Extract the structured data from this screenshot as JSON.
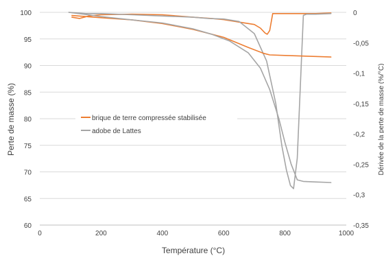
{
  "chart_data": {
    "type": "line",
    "xlabel": "Température (°C)",
    "ylabel": "Perte de masse (%)",
    "y2label": "Dérivée de la perte de masse (%/°C)",
    "xlim": [
      0,
      1000
    ],
    "ylim": [
      60,
      100
    ],
    "y2lim": [
      -0.35,
      0
    ],
    "xticks": [
      "0",
      "200",
      "400",
      "600",
      "800",
      "1000"
    ],
    "yticks": [
      "60",
      "65",
      "70",
      "75",
      "80",
      "85",
      "90",
      "95",
      "100"
    ],
    "y2ticks": [
      "-0,35",
      "-0,3",
      "-0,25",
      "-0,2",
      "-0,15",
      "-0,1",
      "-0,05",
      "0"
    ],
    "grid": "horizontal",
    "legend_position": "center-left",
    "legend": [
      "brique de terre compressée stabilisée",
      "adobe de Lattes"
    ],
    "series": [
      {
        "name": "brique de terre compressée stabilisée",
        "color": "#ED7D31",
        "axis": "left",
        "kind": "mass",
        "x": [
          105,
          200,
          300,
          400,
          500,
          600,
          680,
          730,
          750,
          800,
          900,
          950
        ],
        "y": [
          99.4,
          99.0,
          98.6,
          97.9,
          96.8,
          95.3,
          93.4,
          92.3,
          92.0,
          91.9,
          91.7,
          91.6
        ]
      },
      {
        "name": "brique de terre compressée stabilisée",
        "color": "#ED7D31",
        "axis": "right",
        "kind": "derivative",
        "x": [
          105,
          130,
          160,
          200,
          300,
          400,
          450,
          500,
          560,
          600,
          650,
          700,
          720,
          735,
          742,
          750,
          760,
          800,
          900,
          950
        ],
        "y": [
          -0.008,
          -0.01,
          -0.006,
          -0.004,
          -0.003,
          -0.004,
          -0.006,
          -0.008,
          -0.01,
          -0.012,
          -0.016,
          -0.02,
          -0.026,
          -0.034,
          -0.036,
          -0.03,
          -0.002,
          -0.002,
          -0.002,
          -0.001
        ]
      },
      {
        "name": "adobe de Lattes",
        "color": "#A5A5A5",
        "axis": "left",
        "kind": "mass",
        "x": [
          95,
          150,
          200,
          300,
          400,
          500,
          560,
          620,
          680,
          720,
          750,
          780,
          800,
          820,
          840,
          860,
          900,
          950
        ],
        "y": [
          100,
          99.6,
          99.2,
          98.6,
          98.0,
          96.9,
          95.9,
          94.6,
          92.4,
          89.5,
          85.5,
          80.0,
          75.5,
          71.5,
          68.5,
          68.2,
          68.1,
          68.0
        ]
      },
      {
        "name": "adobe de Lattes",
        "color": "#A5A5A5",
        "axis": "right",
        "kind": "derivative",
        "x": [
          95,
          150,
          200,
          300,
          400,
          500,
          550,
          600,
          650,
          700,
          740,
          770,
          790,
          805,
          818,
          828,
          840,
          852,
          860,
          870,
          900,
          950
        ],
        "y": [
          0,
          -0.002,
          -0.002,
          -0.004,
          -0.006,
          -0.008,
          -0.01,
          -0.011,
          -0.015,
          -0.035,
          -0.08,
          -0.15,
          -0.22,
          -0.26,
          -0.285,
          -0.29,
          -0.24,
          -0.1,
          -0.005,
          -0.003,
          -0.003,
          -0.002
        ]
      }
    ]
  }
}
